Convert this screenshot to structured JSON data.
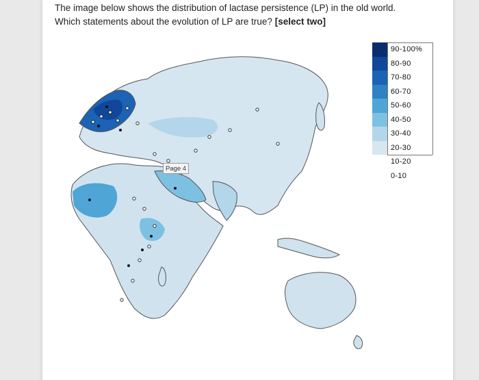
{
  "question": {
    "line1": "The image below shows the distribution of lactase persistence (LP) in the old world.",
    "line2_prefix": "Which statements about the evolution of LP are true?",
    "line2_bold": "[select two]"
  },
  "map_tag": "Page 4",
  "legend": {
    "items": [
      {
        "label": "90-100%",
        "color": "#0a2d6e"
      },
      {
        "label": "80-90",
        "color": "#10479a"
      },
      {
        "label": "70-80",
        "color": "#1c62b5"
      },
      {
        "label": "60-70",
        "color": "#2f82c4"
      },
      {
        "label": "50-60",
        "color": "#4ea5d6"
      },
      {
        "label": "40-50",
        "color": "#7ec0e2"
      },
      {
        "label": "30-40",
        "color": "#b3d6ea"
      },
      {
        "label": "20-30",
        "color": "#d7e6ef"
      },
      {
        "label": "10-20",
        "color": ""
      },
      {
        "label": "0-10",
        "color": ""
      }
    ]
  },
  "colors": {
    "background": "#e9e9e9",
    "page": "#ffffff",
    "text": "#222222",
    "land_base": "#cfe2ee"
  }
}
